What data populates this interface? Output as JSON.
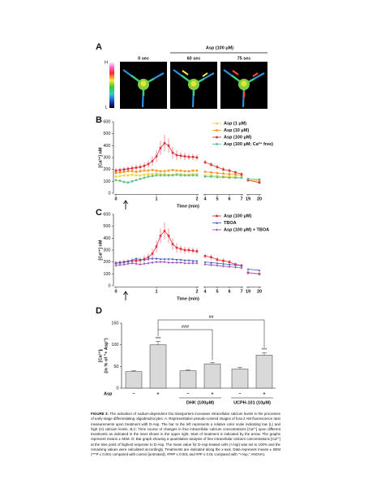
{
  "panels": {
    "a": "A",
    "b": "B",
    "c": "C",
    "d": "D"
  },
  "panel_a": {
    "scale_high": "H",
    "scale_low": "L",
    "treatment": "Asp (100 μM)",
    "frames": [
      "0 sec",
      "60 sec",
      "75 sec"
    ]
  },
  "chart_data": [
    {
      "type": "line",
      "ylabel": "[Ca²⁺] nM",
      "xlabel": "Time (min)",
      "x": [
        0,
        0.1,
        0.2,
        0.3,
        0.4,
        0.5,
        0.6,
        0.7,
        0.8,
        0.9,
        1,
        1.1,
        1.2,
        1.3,
        1.4,
        1.5,
        1.6,
        1.7,
        1.8,
        1.9,
        2,
        4,
        4.5,
        5,
        5.5,
        6,
        6.5,
        7,
        19,
        20
      ],
      "x_segments": [
        [
          0,
          2
        ],
        [
          4,
          7
        ],
        [
          19,
          20
        ]
      ],
      "xticks": [
        0,
        1,
        2,
        4,
        5,
        6,
        7,
        19,
        20
      ],
      "ylim": [
        0,
        600
      ],
      "yticks": [
        0,
        100,
        200,
        300,
        400,
        500,
        600
      ],
      "legend": "upper right",
      "series": [
        {
          "name": "Asp (1 μM)",
          "color": "#f2d43c",
          "marker": "square",
          "values": [
            140,
            145,
            150,
            150,
            155,
            150,
            150,
            155,
            160,
            160,
            165,
            160,
            160,
            155,
            155,
            160,
            160,
            155,
            155,
            160,
            160,
            150,
            150,
            145,
            140,
            140,
            135,
            130,
            110,
            100
          ]
        },
        {
          "name": "Asp (10 μM)",
          "color": "#f39a2b",
          "marker": "square",
          "values": [
            170,
            175,
            180,
            185,
            185,
            180,
            185,
            190,
            190,
            195,
            190,
            185,
            185,
            190,
            195,
            190,
            190,
            185,
            185,
            190,
            190,
            180,
            175,
            170,
            165,
            160,
            155,
            150,
            120,
            110
          ]
        },
        {
          "name": "Asp (100 μM)",
          "color": "#e0303a",
          "marker": "square",
          "values": [
            190,
            195,
            200,
            205,
            210,
            215,
            220,
            230,
            245,
            270,
            310,
            380,
            420,
            400,
            340,
            320,
            315,
            310,
            305,
            305,
            300,
            260,
            240,
            220,
            200,
            190,
            175,
            160,
            110,
            90
          ],
          "errors": [
            20,
            20,
            20,
            20,
            25,
            25,
            25,
            30,
            30,
            40,
            50,
            60,
            70,
            60,
            50,
            40,
            30,
            30,
            25,
            25,
            25,
            20,
            20,
            20,
            20,
            20,
            15,
            15,
            15,
            15
          ]
        },
        {
          "name": "Asp (100 μM; Ca²⁺ free)",
          "color": "#5fc38c",
          "marker": "square",
          "values": [
            110,
            105,
            95,
            90,
            100,
            110,
            120,
            130,
            140,
            145,
            150,
            150,
            150,
            150,
            150,
            155,
            150,
            150,
            150,
            150,
            150,
            140,
            140,
            135,
            135,
            130,
            130,
            130,
            120,
            115
          ]
        }
      ]
    },
    {
      "type": "line",
      "ylabel": "[Ca²⁺] nM",
      "xlabel": "Time (min)",
      "x": [
        0,
        0.1,
        0.2,
        0.3,
        0.4,
        0.5,
        0.6,
        0.7,
        0.8,
        0.9,
        1,
        1.1,
        1.2,
        1.3,
        1.4,
        1.5,
        1.6,
        1.7,
        1.8,
        1.9,
        2,
        4,
        4.5,
        5,
        5.5,
        6,
        6.5,
        7,
        19,
        20
      ],
      "x_segments": [
        [
          0,
          2
        ],
        [
          4,
          7
        ],
        [
          19,
          20
        ]
      ],
      "xticks": [
        0,
        1,
        2,
        4,
        5,
        6,
        7,
        19,
        20
      ],
      "ylim": [
        0,
        600
      ],
      "yticks": [
        0,
        100,
        200,
        300,
        400,
        500,
        600
      ],
      "legend": "upper right",
      "series": [
        {
          "name": "Asp (100 μM)",
          "color": "#e0303a",
          "marker": "square",
          "values": [
            190,
            195,
            200,
            205,
            210,
            210,
            215,
            225,
            240,
            270,
            330,
            420,
            460,
            420,
            350,
            320,
            310,
            300,
            300,
            295,
            290,
            250,
            240,
            220,
            210,
            200,
            180,
            170,
            110,
            100
          ],
          "errors": [
            20,
            20,
            20,
            20,
            25,
            25,
            25,
            30,
            30,
            40,
            50,
            60,
            70,
            60,
            50,
            40,
            30,
            30,
            25,
            25,
            25,
            20,
            20,
            20,
            20,
            20,
            15,
            15,
            15,
            15
          ]
        },
        {
          "name": "TBOA",
          "color": "#4a5fc0",
          "marker": "triangle",
          "values": [
            190,
            195,
            200,
            205,
            215,
            230,
            220,
            220,
            225,
            230,
            230,
            225,
            225,
            225,
            225,
            220,
            220,
            215,
            215,
            210,
            210,
            200,
            195,
            190,
            185,
            180,
            175,
            170,
            140,
            130
          ]
        },
        {
          "name": "Asp (100 μM) + TBOA",
          "color": "#9b4fb8",
          "marker": "diamond",
          "values": [
            170,
            175,
            180,
            185,
            190,
            185,
            180,
            185,
            190,
            195,
            200,
            200,
            200,
            195,
            195,
            195,
            195,
            190,
            190,
            190,
            190,
            180,
            175,
            170,
            165,
            160,
            155,
            150,
            110,
            100
          ]
        }
      ]
    },
    {
      "type": "bar",
      "ylabel": [
        "[Ca²⁺]ᵢ",
        "(in % of \"+ Asp\")"
      ],
      "row_label": "Asp",
      "categories": [
        "−",
        "+",
        "−",
        "+",
        "−",
        "+"
      ],
      "values": [
        38,
        100,
        40,
        56,
        44,
        76
      ],
      "errors": [
        2,
        8,
        2,
        3,
        4,
        6
      ],
      "color": "#d9d9d9",
      "ylim": [
        0,
        150
      ],
      "yticks": [
        0,
        50,
        100,
        150
      ],
      "groups": [
        "DHK (100μM)",
        "UCPH-101 (10μM)"
      ],
      "annotations": [
        "***",
        "***",
        "###",
        "##"
      ]
    }
  ],
  "caption_label": "FIGURE 3:",
  "caption": "The activation of sodium-dependent Glu transporters increases intracellular calcium levels in the processes of early-stage differentiating oligodendrocytes. A: Representative pseudo-colored images of fura-2 AM fluorescence ratio measurements upon treatment with D-Asp. The bar to the left represents a relative color scale indicating low (L) and high (H) calcium levels. B,C: Time course of changes in free intracellular calcium concentrations [Ca²⁺] upon different treatments as indicated in the inset shown in the upper right. Start of treatment is indicated by the arrow. The graphs represent means ± SEM. D: Bar graph showing a quantitative analysis of free intracellular calcium concentrations [Ca²⁺] at the time point of highest response to D-Asp. The mean value for D-Asp-treated cells (+Asp) was set to 100% and the remaining values were calculated accordingly. Treatments are indicated along the x-axis. Data represent means ± SEM (***P ≤ 0.001 compared with control [untreated]. ###P ≤ 0.001 and ##P ≤ 0.01 compared with \"+Asp,\" ANOVA)."
}
